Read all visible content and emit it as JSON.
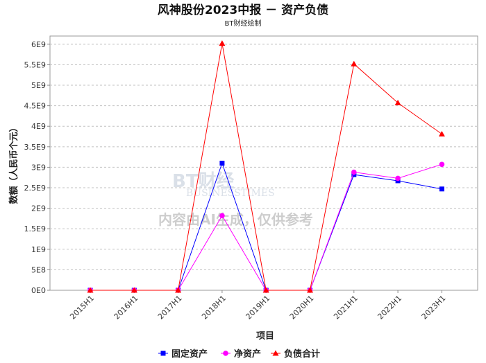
{
  "chart_data": {
    "type": "line",
    "title": "风神股份2023中报 － 资产负债",
    "subtitle": "BT财经绘制",
    "xlabel": "项目",
    "ylabel": "数额（人民币个元）",
    "categories": [
      "2015H1",
      "2016H1",
      "2017H1",
      "2018H1",
      "2019H1",
      "2020H1",
      "2021H1",
      "2022H1",
      "2023H1"
    ],
    "y_ticks": [
      "0E0",
      "5E8",
      "1E9",
      "1.5E9",
      "2E9",
      "2.5E9",
      "3E9",
      "3.5E9",
      "4E9",
      "4.5E9",
      "5E9",
      "5.5E9",
      "6E9"
    ],
    "ylim": [
      0,
      6200000000
    ],
    "grid": true,
    "legend_position": "bottom",
    "series": [
      {
        "name": "固定资产",
        "color": "#0000ff",
        "marker": "square",
        "values": [
          0,
          0,
          0,
          3100000000,
          0,
          0,
          2820000000,
          2670000000,
          2470000000
        ]
      },
      {
        "name": "净资产",
        "color": "#ff00ff",
        "marker": "circle",
        "values": [
          0,
          0,
          0,
          1820000000,
          0,
          0,
          2880000000,
          2730000000,
          3070000000
        ]
      },
      {
        "name": "负债合计",
        "color": "#ff0000",
        "marker": "triangle",
        "values": [
          0,
          0,
          0,
          6020000000,
          0,
          0,
          5520000000,
          4570000000,
          3810000000
        ]
      }
    ]
  },
  "watermark": {
    "logo_text": "BT财经",
    "logo_sub": "BUSINESSTIMES",
    "notice": "内容由AI生成，仅供参考"
  }
}
